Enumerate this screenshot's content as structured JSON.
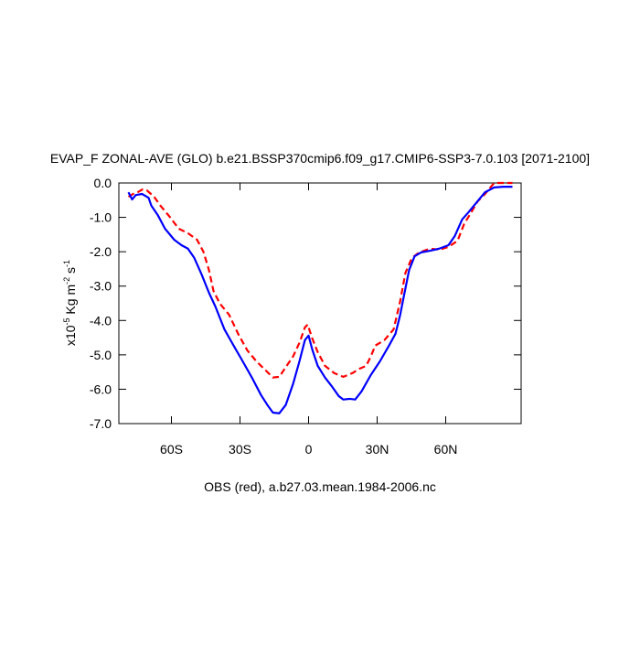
{
  "chart_data": {
    "type": "line",
    "title": "EVAP_F ZONAL-AVE (GLO) b.e21.BSSP370cmip6.f09_g17.CMIP6-SSP3-7.0.103 [2071-2100]",
    "subtitle": "OBS (red), a.b27.03.mean.1984-2006.nc",
    "ylabel": [
      "x10",
      "-5",
      " Kg m",
      "-2",
      " s",
      "-1"
    ],
    "xlim": [
      -83,
      93
    ],
    "ylim": [
      -7,
      0
    ],
    "xticks": [
      {
        "value": -60,
        "label": "60S"
      },
      {
        "value": -30,
        "label": "30S"
      },
      0,
      {
        "value": 30,
        "label": "30N"
      },
      {
        "value": 60,
        "label": "60N"
      }
    ],
    "yticks": [
      {
        "value": 0,
        "label": "0.0"
      },
      {
        "value": -1,
        "label": "-1.0"
      },
      {
        "value": -2,
        "label": "-2.0"
      },
      {
        "value": -3,
        "label": "-3.0"
      },
      {
        "value": -4,
        "label": "-4.0"
      },
      {
        "value": -5,
        "label": "-5.0"
      },
      {
        "value": -6,
        "label": "-6.0"
      },
      {
        "value": -7,
        "label": "-7.0"
      }
    ],
    "series": [
      {
        "color": "#0000ff",
        "dash": false,
        "x": [
          -78.8,
          -77.2,
          -75.6,
          -72.8,
          -70,
          -68.8,
          -66,
          -62.8,
          -58.8,
          -55.6,
          -52.8,
          -50,
          -46.8,
          -43.6,
          -40.8,
          -36.8,
          -32.8,
          -28.8,
          -24.8,
          -20.8,
          -18,
          -15.6,
          -12.8,
          -10,
          -6.8,
          -4,
          -1.6,
          0,
          1.6,
          4,
          7.2,
          10,
          13.2,
          15.2,
          18,
          20.4,
          23.2,
          27.2,
          31.2,
          35.2,
          38,
          40,
          42,
          44,
          46.4,
          49.2,
          53.2,
          57.2,
          61.2,
          64,
          67.2,
          70,
          73.2,
          77.2,
          81.2,
          85.2,
          89.2
        ],
        "values": [
          -0.27,
          -0.48,
          -0.35,
          -0.32,
          -0.43,
          -0.66,
          -0.93,
          -1.33,
          -1.65,
          -1.81,
          -1.91,
          -2.18,
          -2.66,
          -3.19,
          -3.59,
          -4.26,
          -4.73,
          -5.19,
          -5.66,
          -6.17,
          -6.46,
          -6.68,
          -6.7,
          -6.46,
          -5.85,
          -5.19,
          -4.57,
          -4.44,
          -4.84,
          -5.32,
          -5.66,
          -5.9,
          -6.2,
          -6.3,
          -6.28,
          -6.3,
          -6.06,
          -5.59,
          -5.19,
          -4.73,
          -4.39,
          -3.86,
          -3.19,
          -2.53,
          -2.13,
          -2.02,
          -1.97,
          -1.91,
          -1.81,
          -1.54,
          -1.06,
          -0.85,
          -0.59,
          -0.27,
          -0.13,
          -0.11,
          -0.11
        ]
      },
      {
        "color": "#ff0000",
        "dash": true,
        "x": [
          -78.8,
          -76.8,
          -74.8,
          -72.8,
          -70.8,
          -67.6,
          -64.8,
          -60.8,
          -56.8,
          -52.8,
          -48.8,
          -46,
          -43.6,
          -41.6,
          -38.8,
          -34.8,
          -30.8,
          -26.8,
          -22.8,
          -18.8,
          -15.6,
          -12.8,
          -9.6,
          -6.8,
          -4,
          -1.6,
          -0.4,
          1.6,
          4,
          7.2,
          11.2,
          15.2,
          19.2,
          22.4,
          25.2,
          27.2,
          29.2,
          33.2,
          37.2,
          40,
          42.4,
          45.2,
          48.4,
          53.2,
          57.2,
          61.2,
          65.2,
          68,
          71.2,
          74,
          77.2,
          81.2,
          85.2,
          89.2
        ],
        "values": [
          -0.4,
          -0.32,
          -0.27,
          -0.19,
          -0.21,
          -0.4,
          -0.66,
          -0.98,
          -1.33,
          -1.46,
          -1.65,
          -2.0,
          -2.53,
          -3.14,
          -3.51,
          -3.83,
          -4.39,
          -4.87,
          -5.19,
          -5.45,
          -5.66,
          -5.64,
          -5.32,
          -5.05,
          -4.65,
          -4.2,
          -4.12,
          -4.52,
          -4.92,
          -5.32,
          -5.53,
          -5.64,
          -5.53,
          -5.4,
          -5.32,
          -5.05,
          -4.73,
          -4.57,
          -4.26,
          -3.46,
          -2.61,
          -2.18,
          -2.02,
          -1.91,
          -1.94,
          -1.86,
          -1.68,
          -1.2,
          -0.85,
          -0.53,
          -0.32,
          0.0,
          0.0,
          0.0
        ]
      }
    ]
  }
}
